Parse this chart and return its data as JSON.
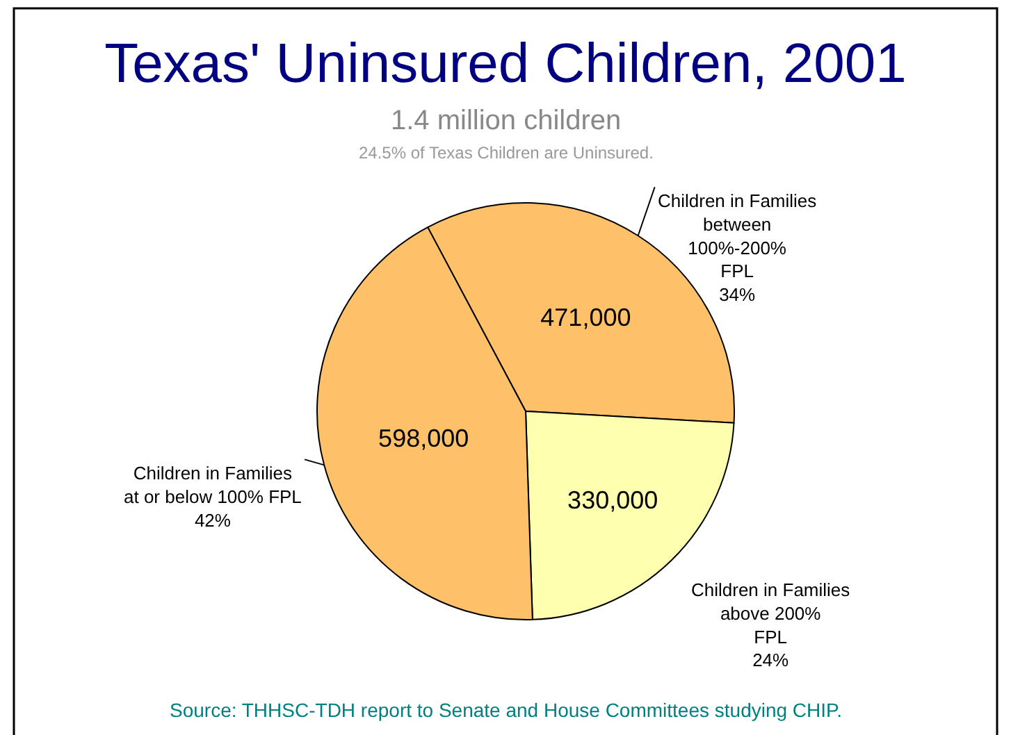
{
  "chart_data": {
    "type": "pie",
    "title": "Texas' Uninsured Children, 2001",
    "subtitle": "1.4 million children",
    "categories": [
      "Children in Families\nbetween\n100%-200%\nFPL\n34%",
      "Children in Families\nabove 200%\nFPL\n24%",
      "Children in Families\nat or below 100% FPL\n42%"
    ],
    "values": [
      471000,
      330000,
      598000
    ],
    "value_labels": [
      "471,000",
      "330,000",
      "598,000"
    ],
    "colors": [
      "#ffc06a",
      "#ffffb0",
      "#ffc06a"
    ],
    "annotations": [
      "24.5% of Texas Children are Uninsured.",
      "Source: THHSC-TDH report to Senate and House Committees studying CHIP."
    ],
    "legend": false
  }
}
